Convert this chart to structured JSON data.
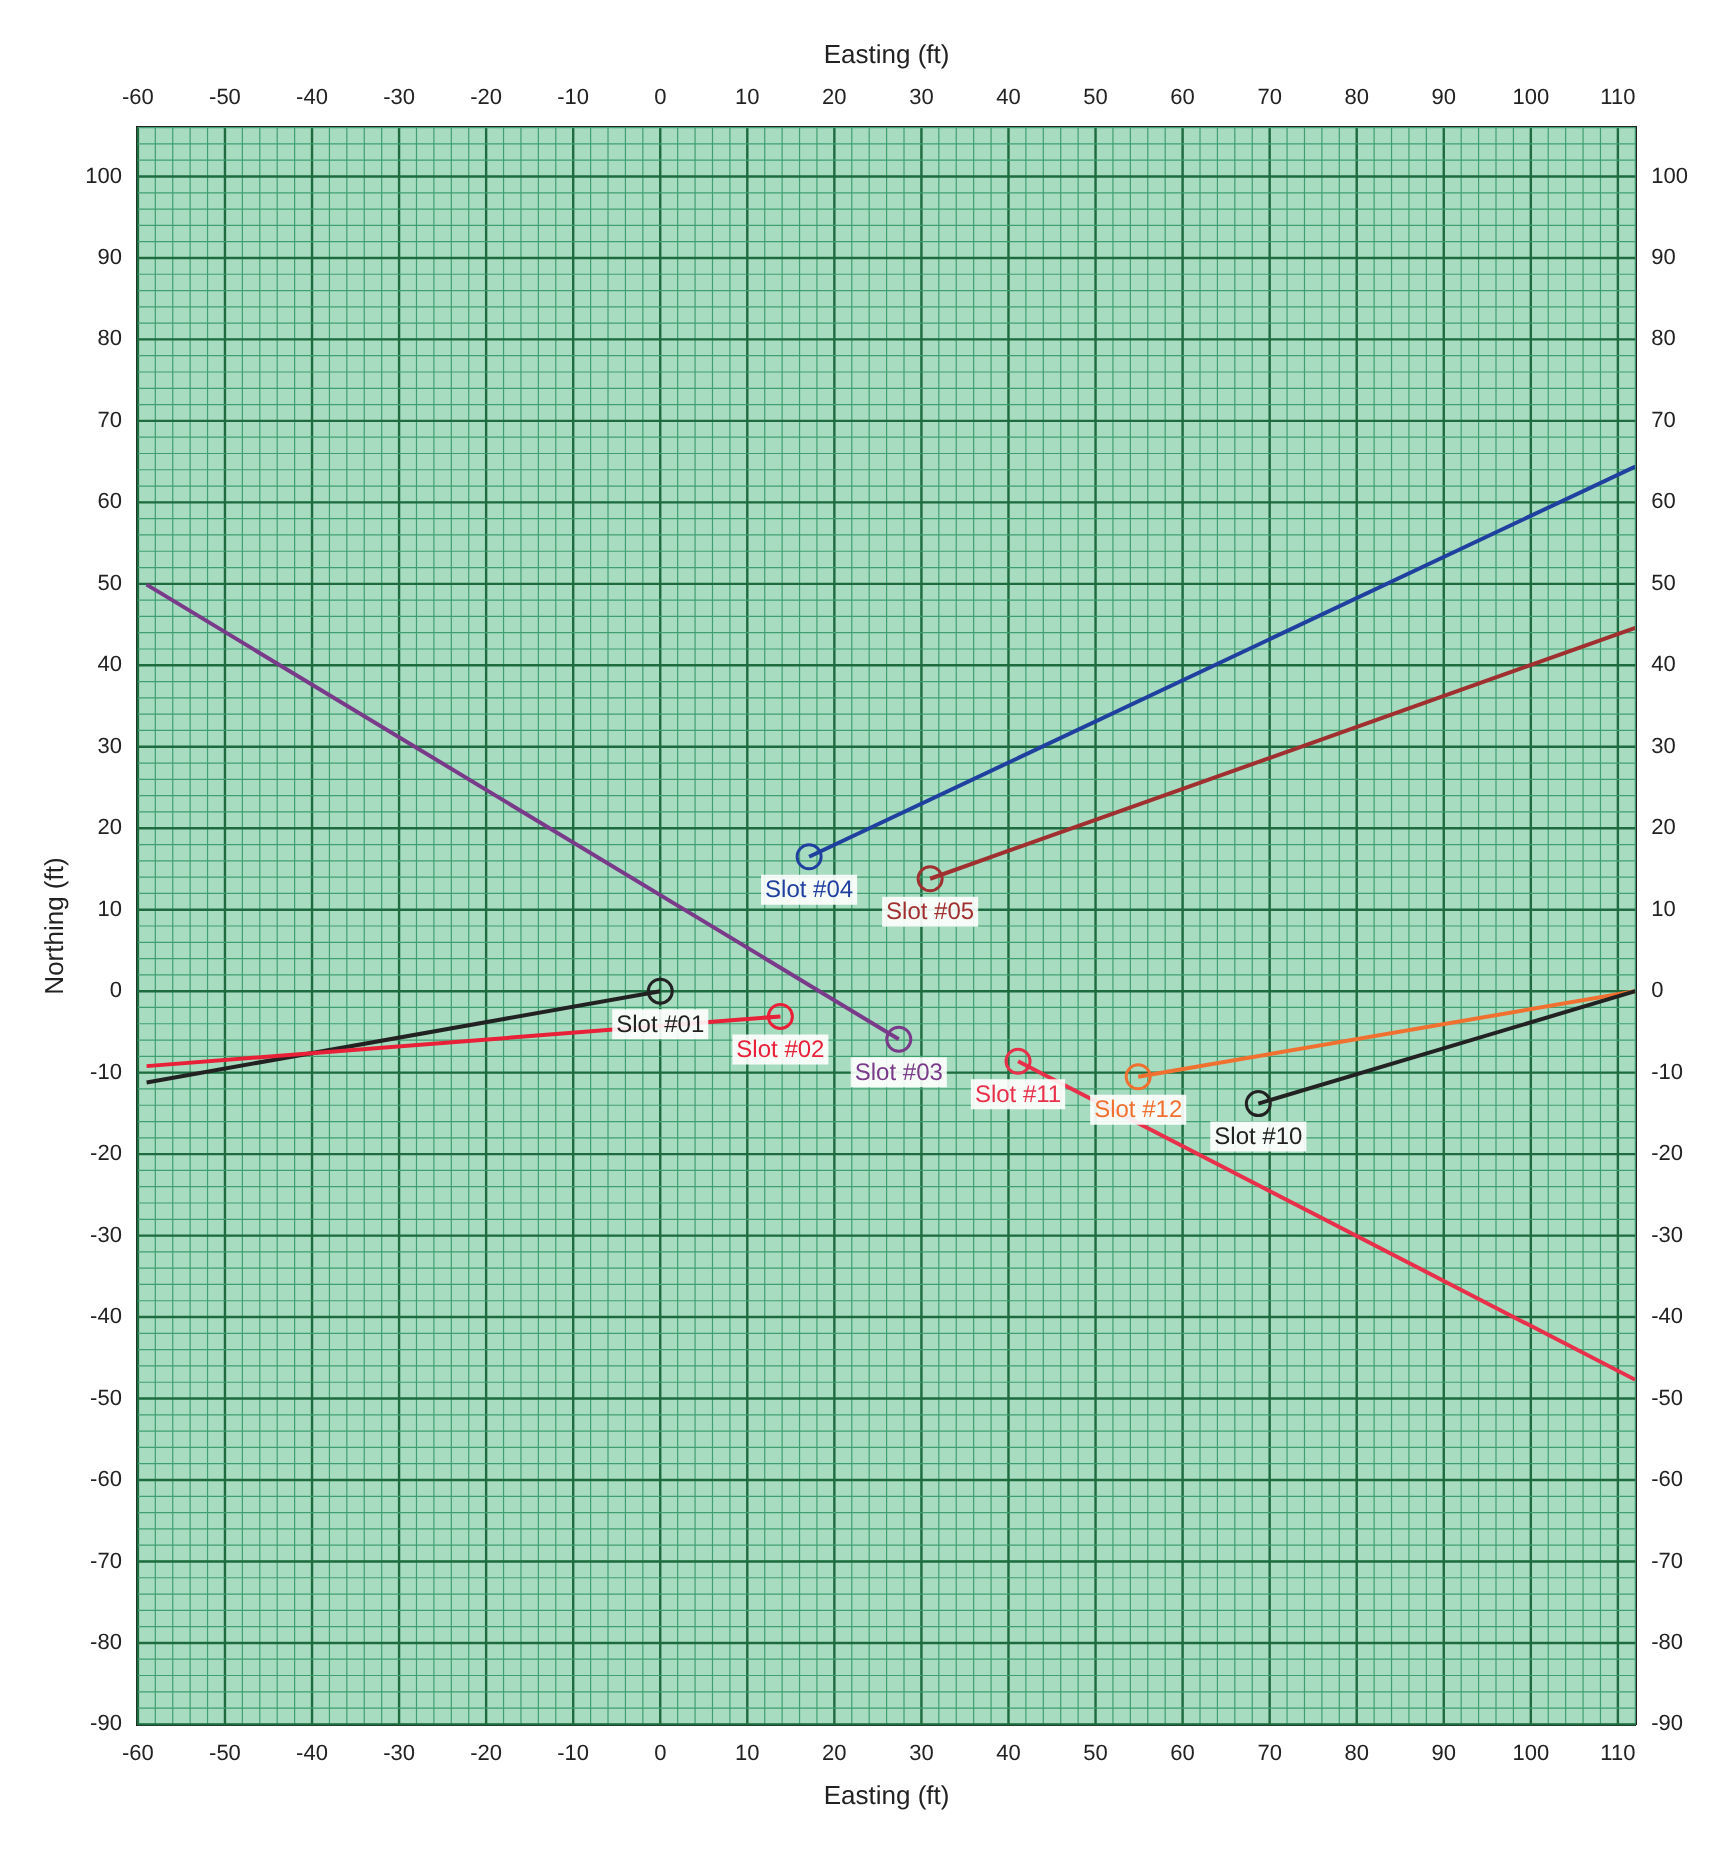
{
  "chart_data": {
    "type": "line",
    "xlabel": "Easting (ft)",
    "x2label": "Easting (ft)",
    "ylabel": "Northing (ft)",
    "xlim": [
      -60,
      112
    ],
    "xticks": [
      -60,
      -50,
      -40,
      -30,
      -20,
      -10,
      0,
      10,
      20,
      30,
      40,
      50,
      60,
      70,
      80,
      90,
      100,
      110
    ],
    "x2lim": [
      -60,
      112
    ],
    "x2ticks": [
      -60,
      -50,
      -40,
      -30,
      -20,
      -10,
      0,
      10,
      20,
      30,
      40,
      50,
      60,
      70,
      80,
      90,
      100,
      110
    ],
    "ylim": [
      -90,
      106
    ],
    "yticks": [
      -90,
      -80,
      -70,
      -60,
      -50,
      -40,
      -30,
      -20,
      -10,
      0,
      10,
      20,
      30,
      40,
      50,
      60,
      70,
      80,
      90,
      100
    ],
    "y2lim": [
      -90,
      106
    ],
    "y2ticks": [
      -90,
      -80,
      -70,
      -60,
      -50,
      -40,
      -30,
      -20,
      -10,
      0,
      10,
      20,
      30,
      40,
      50,
      60,
      70,
      80,
      90,
      100
    ],
    "grid": true,
    "legend": false,
    "marker": "circle",
    "line_style": "solid",
    "series": [
      {
        "name": "Slot #10",
        "color": "#222222",
        "x": [
          68.7,
          112
        ],
        "values": [
          -13.8,
          0
        ]
      },
      {
        "name": "Slot #12",
        "color": "#f07030",
        "x": [
          54.9,
          112
        ],
        "values": [
          -10.5,
          0
        ]
      },
      {
        "name": "Slot #11",
        "color": "#e8304a",
        "x": [
          41.1,
          112
        ],
        "values": [
          -8.6,
          -47.7
        ]
      },
      {
        "name": "Slot #03",
        "color": "#7a3a8a",
        "x": [
          27.4,
          -59
        ],
        "values": [
          -5.9,
          49.9
        ]
      },
      {
        "name": "Slot #02",
        "color": "#e82038",
        "x": [
          13.8,
          -59
        ],
        "values": [
          -3.1,
          -9.2
        ]
      },
      {
        "name": "Slot #01",
        "color": "#222222",
        "x": [
          0,
          -59
        ],
        "values": [
          0,
          -11.2
        ]
      },
      {
        "name": "Slot #05",
        "color": "#a03030",
        "x": [
          31,
          112
        ],
        "values": [
          13.8,
          44.6
        ]
      },
      {
        "name": "Slot #04",
        "color": "#2040a0",
        "x": [
          17.1,
          112
        ],
        "values": [
          16.5,
          64.4
        ]
      }
    ]
  }
}
